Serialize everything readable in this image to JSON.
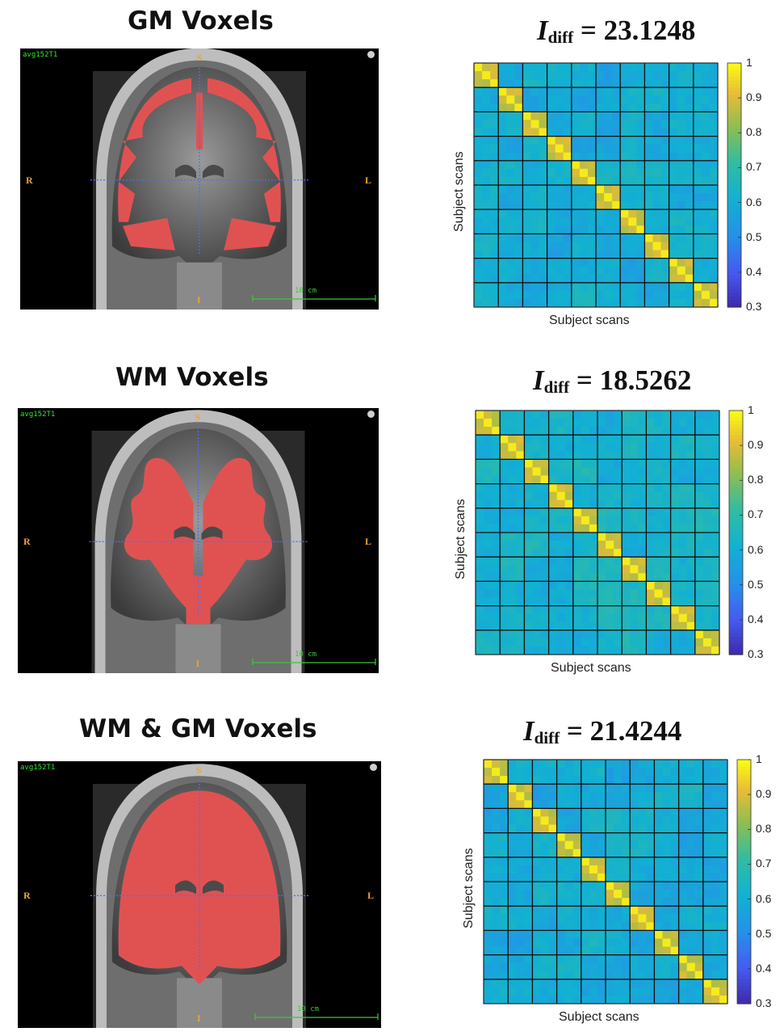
{
  "rows": [
    {
      "title": "GM Voxels",
      "idiff_symbol": "I",
      "idiff_sub": "diff",
      "idiff_eq": " = ",
      "idiff_value": "23.1248",
      "mri": {
        "label": "avg152T1",
        "sup": "S",
        "inf": "I",
        "right": "R",
        "left": "L",
        "scale": "10 cm",
        "mask": "gm"
      }
    },
    {
      "title": "WM Voxels",
      "idiff_symbol": "I",
      "idiff_sub": "diff",
      "idiff_eq": " = ",
      "idiff_value": "18.5262",
      "mri": {
        "label": "avg152T1",
        "sup": "S",
        "inf": "I",
        "right": "R",
        "left": "L",
        "scale": "10 cm",
        "mask": "wm"
      }
    },
    {
      "title": "WM & GM Voxels",
      "idiff_symbol": "I",
      "idiff_sub": "diff",
      "idiff_eq": " = ",
      "idiff_value": "21.4244",
      "mri": {
        "label": "avg152T1",
        "sup": "S",
        "inf": "I",
        "right": "R",
        "left": "L",
        "scale": "10 cm",
        "mask": "both"
      }
    }
  ],
  "chart_data": [
    {
      "type": "heatmap",
      "title": "I diff = 23.1248",
      "xlabel": "Subject scans",
      "ylabel": "Subject scans",
      "blocks": 10,
      "colorbar_range": [
        0.3,
        1
      ],
      "colorbar_ticks": [
        "1",
        "0.9",
        "0.8",
        "0.7",
        "0.6",
        "0.5",
        "0.4",
        "0.3"
      ],
      "colormap": "parula",
      "diagonal_block_value": 0.88,
      "off_diagonal_value": 0.6
    },
    {
      "type": "heatmap",
      "title": "I diff = 18.5262",
      "xlabel": "Subject scans",
      "ylabel": "Subject scans",
      "blocks": 10,
      "colorbar_range": [
        0.3,
        1
      ],
      "colorbar_ticks": [
        "1",
        "0.9",
        "0.8",
        "0.7",
        "0.6",
        "0.5",
        "0.4",
        "0.3"
      ],
      "colormap": "parula",
      "diagonal_block_value": 0.88,
      "off_diagonal_value": 0.63
    },
    {
      "type": "heatmap",
      "title": "I diff = 21.4244",
      "xlabel": "Subject scans",
      "ylabel": "Subject scans",
      "blocks": 10,
      "colorbar_range": [
        0.3,
        1
      ],
      "colorbar_ticks": [
        "1",
        "0.9",
        "0.8",
        "0.7",
        "0.6",
        "0.5",
        "0.4",
        "0.3"
      ],
      "colormap": "parula",
      "diagonal_block_value": 0.88,
      "off_diagonal_value": 0.6
    }
  ]
}
